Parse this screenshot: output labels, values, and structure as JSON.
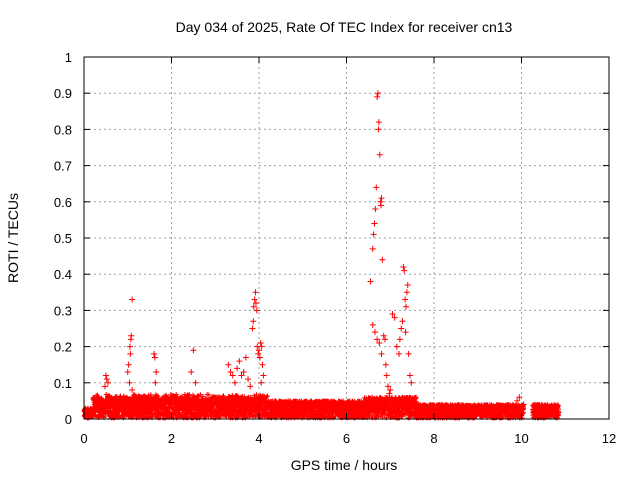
{
  "chart_data": {
    "type": "scatter",
    "title": "Day 034 of 2025, Rate Of TEC Index for receiver cn13",
    "xlabel": "GPS time / hours",
    "ylabel": "ROTI / TECUs",
    "xlim": [
      0,
      12
    ],
    "ylim": [
      0,
      1
    ],
    "xticks": [
      "0",
      "2",
      "4",
      "6",
      "8",
      "10",
      "12"
    ],
    "yticks": [
      "0",
      "0.1",
      "0.2",
      "0.3",
      "0.4",
      "0.5",
      "0.6",
      "0.7",
      "0.8",
      "0.9",
      "1"
    ],
    "grid": true,
    "marker": "plus",
    "color": "#ff0000",
    "series": [
      {
        "points": [
          [
            0.5,
            0.12
          ],
          [
            0.52,
            0.11
          ],
          [
            0.55,
            0.1
          ],
          [
            0.48,
            0.09
          ],
          [
            1.0,
            0.13
          ],
          [
            1.02,
            0.15
          ],
          [
            1.05,
            0.2
          ],
          [
            1.07,
            0.22
          ],
          [
            1.08,
            0.23
          ],
          [
            1.1,
            0.33
          ],
          [
            1.06,
            0.18
          ],
          [
            1.04,
            0.1
          ],
          [
            1.1,
            0.08
          ],
          [
            1.6,
            0.18
          ],
          [
            1.62,
            0.17
          ],
          [
            1.65,
            0.13
          ],
          [
            1.63,
            0.1
          ],
          [
            2.5,
            0.19
          ],
          [
            2.45,
            0.13
          ],
          [
            2.55,
            0.1
          ],
          [
            3.3,
            0.15
          ],
          [
            3.35,
            0.13
          ],
          [
            3.4,
            0.12
          ],
          [
            3.45,
            0.1
          ],
          [
            3.5,
            0.14
          ],
          [
            3.55,
            0.16
          ],
          [
            3.6,
            0.12
          ],
          [
            3.65,
            0.13
          ],
          [
            3.7,
            0.17
          ],
          [
            3.75,
            0.11
          ],
          [
            3.8,
            0.09
          ],
          [
            3.85,
            0.25
          ],
          [
            3.87,
            0.27
          ],
          [
            3.88,
            0.31
          ],
          [
            3.9,
            0.33
          ],
          [
            3.92,
            0.35
          ],
          [
            3.93,
            0.32
          ],
          [
            3.95,
            0.3
          ],
          [
            3.96,
            0.2
          ],
          [
            3.98,
            0.18
          ],
          [
            4.0,
            0.19
          ],
          [
            4.02,
            0.17
          ],
          [
            4.04,
            0.21
          ],
          [
            4.06,
            0.2
          ],
          [
            4.08,
            0.15
          ],
          [
            4.1,
            0.12
          ],
          [
            4.05,
            0.1
          ],
          [
            6.55,
            0.38
          ],
          [
            6.6,
            0.47
          ],
          [
            6.62,
            0.51
          ],
          [
            6.64,
            0.54
          ],
          [
            6.66,
            0.58
          ],
          [
            6.68,
            0.64
          ],
          [
            6.7,
            0.89
          ],
          [
            6.72,
            0.9
          ],
          [
            6.74,
            0.82
          ],
          [
            6.73,
            0.8
          ],
          [
            6.76,
            0.73
          ],
          [
            6.78,
            0.6
          ],
          [
            6.8,
            0.61
          ],
          [
            6.79,
            0.59
          ],
          [
            6.82,
            0.44
          ],
          [
            6.6,
            0.26
          ],
          [
            6.65,
            0.24
          ],
          [
            6.7,
            0.22
          ],
          [
            6.75,
            0.21
          ],
          [
            6.8,
            0.18
          ],
          [
            6.85,
            0.23
          ],
          [
            6.88,
            0.22
          ],
          [
            6.9,
            0.15
          ],
          [
            6.92,
            0.12
          ],
          [
            6.95,
            0.09
          ],
          [
            7.0,
            0.08
          ],
          [
            6.98,
            0.07
          ],
          [
            7.05,
            0.29
          ],
          [
            7.1,
            0.28
          ],
          [
            7.15,
            0.2
          ],
          [
            7.2,
            0.18
          ],
          [
            7.22,
            0.22
          ],
          [
            7.25,
            0.25
          ],
          [
            7.28,
            0.27
          ],
          [
            7.3,
            0.42
          ],
          [
            7.32,
            0.41
          ],
          [
            7.34,
            0.33
          ],
          [
            7.36,
            0.31
          ],
          [
            7.38,
            0.35
          ],
          [
            7.4,
            0.37
          ],
          [
            7.35,
            0.24
          ],
          [
            7.42,
            0.18
          ],
          [
            7.45,
            0.12
          ],
          [
            7.48,
            0.1
          ],
          [
            9.9,
            0.05
          ],
          [
            9.95,
            0.06
          ],
          [
            10.05,
            0.04
          ]
        ]
      }
    ]
  }
}
